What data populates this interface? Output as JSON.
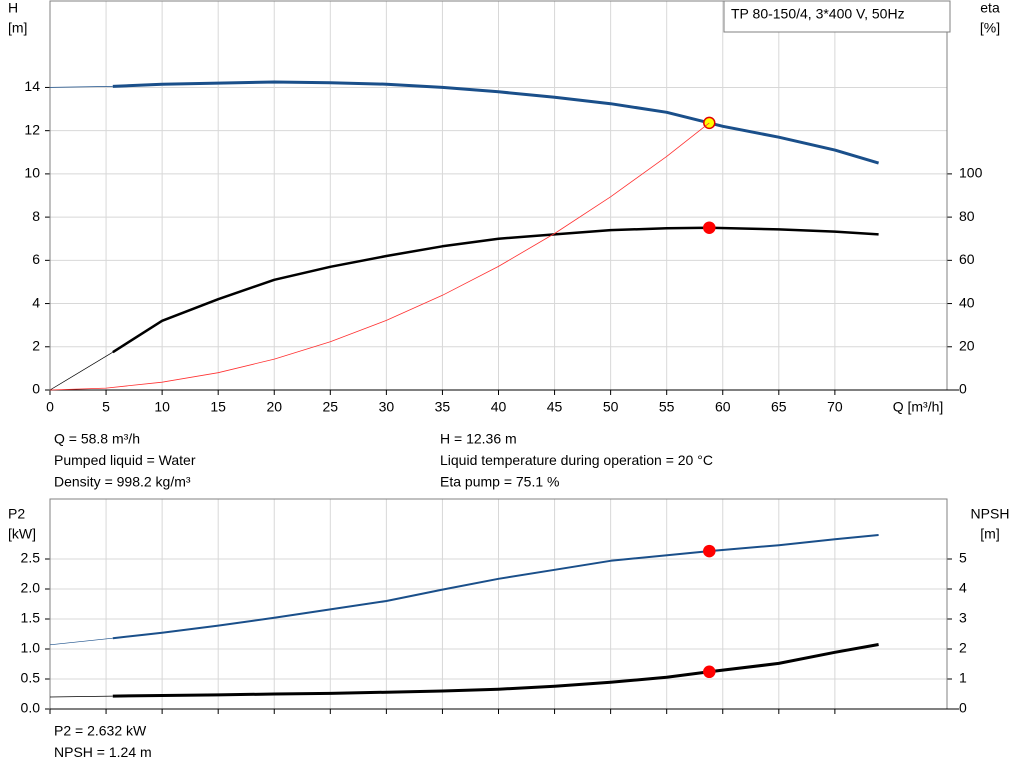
{
  "chart_data": [
    {
      "type": "line",
      "ylabel": [
        "H",
        "[m]"
      ],
      "y2label": [
        "eta",
        "[%]"
      ],
      "xlabel": "Q [m³/h]",
      "box_label": "TP 80-150/4, 3*400 V, 50Hz",
      "xlim": [
        0,
        80
      ],
      "xticks": [
        0,
        5,
        10,
        15,
        20,
        25,
        30,
        35,
        40,
        45,
        50,
        55,
        60,
        65,
        70
      ],
      "ylim": [
        0,
        18
      ],
      "yticks": [
        0,
        2,
        4,
        6,
        8,
        10,
        12,
        14
      ],
      "y2lim": [
        0,
        180
      ],
      "y2ticks": [
        0,
        20,
        40,
        60,
        80,
        100
      ],
      "grid": true,
      "operating_x": 58.8,
      "series": [
        {
          "color": "#1a4f8a",
          "width": 3,
          "lead_in": true,
          "marker_fill": "#ffff00",
          "marker_stroke": "#e00000",
          "x": [
            0,
            5.6,
            10,
            15,
            20,
            25,
            30,
            35,
            40,
            45,
            50,
            55,
            58.8,
            60,
            65,
            70,
            73.9
          ],
          "values": [
            14.0,
            14.05,
            14.15,
            14.2,
            14.25,
            14.22,
            14.15,
            14.0,
            13.8,
            13.55,
            13.25,
            12.85,
            12.36,
            12.2,
            11.7,
            11.1,
            10.5
          ]
        },
        {
          "color": "#000000",
          "width": 2.5,
          "lead_in": true,
          "axis": "y2",
          "marker_fill": "#ff0000",
          "marker_stroke": "#ff0000",
          "x": [
            0,
            5.6,
            10,
            15,
            20,
            25,
            30,
            35,
            40,
            45,
            50,
            55,
            58.8,
            65,
            70,
            73.9
          ],
          "values": [
            0,
            17.5,
            32,
            42,
            51,
            57,
            62,
            66.5,
            70,
            72,
            74,
            74.8,
            75.1,
            74.3,
            73.3,
            72
          ]
        },
        {
          "color": "#ff3030",
          "width": 0.8,
          "lead_in": false,
          "x": [
            0,
            5,
            10,
            15,
            20,
            25,
            30,
            35,
            40,
            45,
            50,
            55,
            58.8
          ],
          "values": [
            0,
            0.09,
            0.36,
            0.8,
            1.43,
            2.23,
            3.22,
            4.38,
            5.72,
            7.24,
            8.94,
            10.81,
            12.36
          ]
        }
      ],
      "notes": [
        "Q = 58.8 m³/h",
        "Pumped liquid = Water",
        "Density = 998.2 kg/m³",
        "H = 12.36 m",
        "Liquid temperature during operation = 20 °C",
        "Eta pump = 75.1 %"
      ]
    },
    {
      "type": "line",
      "ylabel": [
        "P2",
        "[kW]"
      ],
      "y2label": [
        "NPSH",
        "[m]"
      ],
      "xlim": [
        0,
        80
      ],
      "ylim": [
        0,
        3.5
      ],
      "yticks": [
        {
          "value": 0,
          "label": "0.0"
        },
        0.5,
        {
          "value": 1,
          "label": "1.0"
        },
        1.5,
        {
          "value": 2,
          "label": "2.0"
        },
        2.5
      ],
      "y2lim": [
        0,
        7
      ],
      "y2ticks": [
        0,
        1,
        2,
        3,
        4,
        5
      ],
      "grid": true,
      "operating_x": 58.8,
      "series": [
        {
          "color": "#1a4f8a",
          "width": 2,
          "lead_in": true,
          "marker_fill": "#ff0000",
          "marker_stroke": "#ff0000",
          "x": [
            0,
            5.6,
            10,
            15,
            20,
            25,
            30,
            35,
            40,
            45,
            50,
            58.8,
            65,
            70,
            73.9
          ],
          "values": [
            1.07,
            1.18,
            1.27,
            1.39,
            1.52,
            1.66,
            1.8,
            1.99,
            2.17,
            2.32,
            2.47,
            2.632,
            2.73,
            2.83,
            2.9
          ]
        },
        {
          "color": "#000000",
          "width": 3,
          "lead_in": true,
          "axis": "y2",
          "marker_fill": "#ff0000",
          "marker_stroke": "#ff0000",
          "x": [
            0,
            5.6,
            10,
            15,
            20,
            25,
            30,
            35,
            40,
            45,
            50,
            55,
            58.8,
            65,
            70,
            73.9
          ],
          "values": [
            0.4,
            0.43,
            0.45,
            0.47,
            0.5,
            0.52,
            0.56,
            0.6,
            0.66,
            0.76,
            0.89,
            1.06,
            1.24,
            1.52,
            1.89,
            2.15
          ]
        }
      ],
      "notes": [
        "P2 = 2.632 kW",
        "NPSH = 1.24 m"
      ]
    }
  ]
}
